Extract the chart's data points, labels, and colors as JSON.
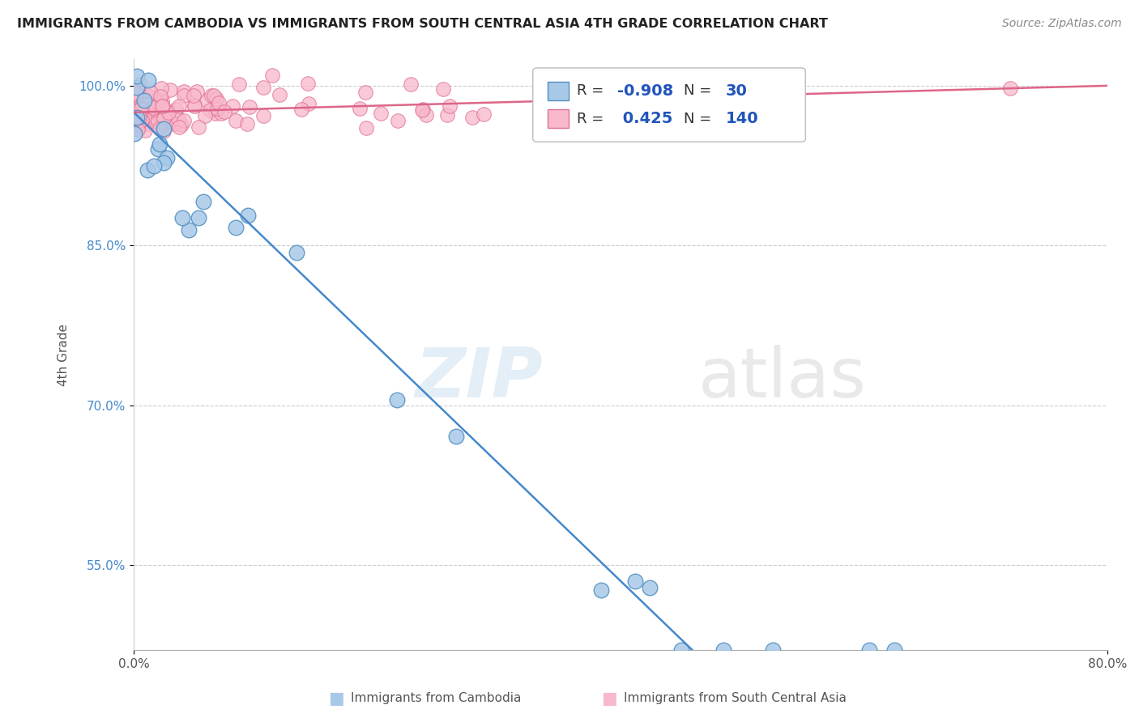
{
  "title": "IMMIGRANTS FROM CAMBODIA VS IMMIGRANTS FROM SOUTH CENTRAL ASIA 4TH GRADE CORRELATION CHART",
  "source": "Source: ZipAtlas.com",
  "xlabel_blue": "Immigrants from Cambodia",
  "xlabel_pink": "Immigrants from South Central Asia",
  "ylabel": "4th Grade",
  "watermark_zip": "ZIP",
  "watermark_atlas": "atlas",
  "xlim": [
    0.0,
    0.8
  ],
  "ylim": [
    0.47,
    1.025
  ],
  "blue_R": -0.908,
  "blue_N": 30,
  "pink_R": 0.425,
  "pink_N": 140,
  "blue_color": "#a8c8e8",
  "blue_edge": "#5090c0",
  "pink_color": "#f8b8cc",
  "pink_edge": "#e07090",
  "blue_line_color": "#4488cc",
  "pink_line_color": "#dd6688"
}
